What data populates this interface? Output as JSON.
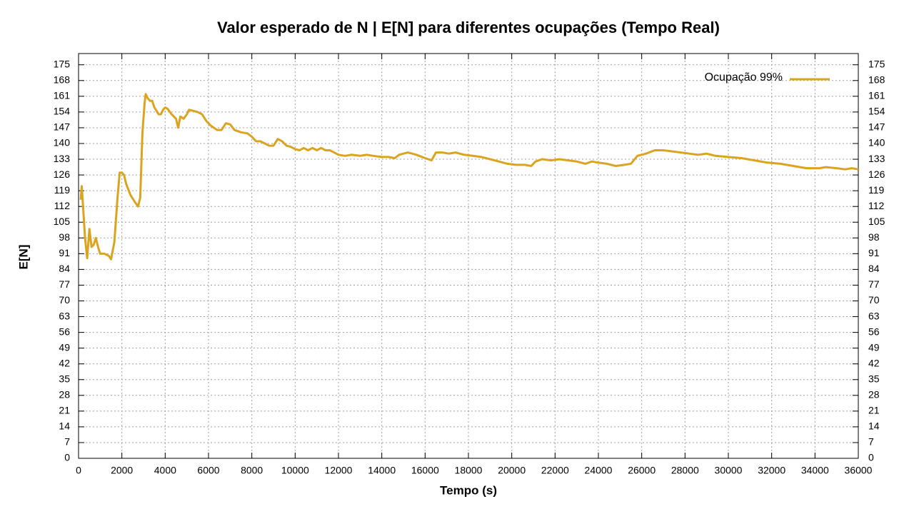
{
  "chart_data": {
    "type": "line",
    "title": "Valor esperado de N | E[N] para diferentes ocupações (Tempo Real)",
    "xlabel": "Tempo (s)",
    "ylabel": "E[N]",
    "x": [
      100,
      150,
      200,
      300,
      400,
      500,
      600,
      700,
      800,
      900,
      1000,
      1200,
      1400,
      1500,
      1650,
      1800,
      1900,
      2000,
      2100,
      2200,
      2400,
      2600,
      2750,
      2850,
      2950,
      3050,
      3100,
      3200,
      3300,
      3400,
      3500,
      3700,
      3800,
      3900,
      4000,
      4100,
      4300,
      4500,
      4600,
      4700,
      4850,
      5000,
      5100,
      5300,
      5500,
      5700,
      5900,
      6100,
      6400,
      6600,
      6800,
      7000,
      7200,
      7500,
      7800,
      8000,
      8200,
      8400,
      8600,
      8800,
      9000,
      9200,
      9400,
      9600,
      9800,
      10000,
      10200,
      10400,
      10600,
      10800,
      11000,
      11200,
      11400,
      11600,
      11800,
      12000,
      12300,
      12600,
      13000,
      13300,
      13600,
      14000,
      14300,
      14600,
      14800,
      15200,
      15600,
      16000,
      16300,
      16500,
      16800,
      17100,
      17400,
      17800,
      18200,
      18600,
      19000,
      19400,
      19800,
      20200,
      20600,
      20900,
      21100,
      21400,
      21800,
      22200,
      22600,
      23000,
      23400,
      23700,
      24000,
      24400,
      24800,
      25200,
      25500,
      25800,
      26200,
      26600,
      27000,
      27400,
      27800,
      28200,
      28600,
      29000,
      29400,
      30000,
      30600,
      31200,
      31800,
      32400,
      33000,
      33600,
      34200,
      34500,
      35000,
      35400,
      35700,
      36000
    ],
    "series": [
      {
        "name": "Ocupação 99%",
        "color": "#dba41e",
        "values": [
          115,
          121,
          113,
          98,
          89,
          102,
          94,
          95,
          98,
          94,
          91,
          91,
          90,
          88.5,
          96,
          116,
          127,
          127,
          126,
          122,
          117,
          114,
          112,
          116,
          145,
          158,
          162,
          160,
          159,
          159,
          156,
          153,
          153,
          155,
          156,
          155.5,
          153,
          151,
          147,
          152,
          151,
          153,
          155,
          154.5,
          154,
          153,
          150,
          148,
          146,
          146,
          149,
          148.5,
          146,
          145,
          144.5,
          143,
          141,
          141,
          140,
          139,
          139,
          142,
          141,
          139,
          138.5,
          137.5,
          137,
          138,
          137,
          138,
          137,
          138,
          137,
          137,
          136,
          135,
          134.5,
          135,
          134.5,
          135,
          134.5,
          134,
          134,
          133.5,
          135,
          136,
          135,
          133.5,
          132.5,
          136,
          136,
          135.5,
          136,
          135,
          134.5,
          134,
          133,
          132,
          131,
          130.5,
          130.5,
          130,
          132,
          133,
          132.5,
          133,
          132.5,
          132,
          131,
          132,
          131.5,
          131,
          130,
          130.5,
          131,
          134.5,
          135.5,
          137,
          137,
          136.5,
          136,
          135.5,
          135,
          135.5,
          134.5,
          134,
          133.5,
          132.5,
          131.5,
          131,
          130,
          129,
          129,
          129.5,
          129,
          128.5,
          129,
          128.5
        ]
      }
    ],
    "xlim": [
      0,
      36000
    ],
    "xticks": [
      0,
      2000,
      4000,
      6000,
      8000,
      10000,
      12000,
      14000,
      16000,
      18000,
      20000,
      22000,
      24000,
      26000,
      28000,
      30000,
      32000,
      34000,
      36000
    ],
    "ylim": [
      0,
      180
    ],
    "yticks": [
      0,
      7,
      14,
      21,
      28,
      35,
      42,
      49,
      56,
      63,
      70,
      77,
      84,
      91,
      98,
      105,
      112,
      119,
      126,
      133,
      140,
      147,
      154,
      161,
      168,
      175
    ],
    "y2lim": [
      0,
      180
    ],
    "y2ticks": [
      0,
      7,
      14,
      21,
      28,
      35,
      42,
      49,
      56,
      63,
      70,
      77,
      84,
      91,
      98,
      105,
      112,
      119,
      126,
      133,
      140,
      147,
      154,
      161,
      168,
      175
    ],
    "grid": true,
    "legend": "top-right"
  }
}
